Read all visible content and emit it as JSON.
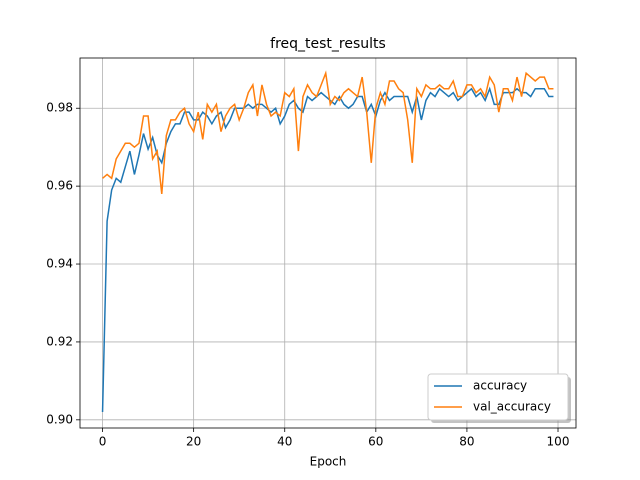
{
  "chart_data": {
    "type": "line",
    "title": "freq_test_results",
    "x_label": "Epoch",
    "x": [
      0,
      1,
      2,
      3,
      4,
      5,
      6,
      7,
      8,
      9,
      10,
      11,
      12,
      13,
      14,
      15,
      16,
      17,
      18,
      19,
      20,
      21,
      22,
      23,
      24,
      25,
      26,
      27,
      28,
      29,
      30,
      31,
      32,
      33,
      34,
      35,
      36,
      37,
      38,
      39,
      40,
      41,
      42,
      43,
      44,
      45,
      46,
      47,
      48,
      49,
      50,
      51,
      52,
      53,
      54,
      55,
      56,
      57,
      58,
      59,
      60,
      61,
      62,
      63,
      64,
      65,
      66,
      67,
      68,
      69,
      70,
      71,
      72,
      73,
      74,
      75,
      76,
      77,
      78,
      79,
      80,
      81,
      82,
      83,
      84,
      85,
      86,
      87,
      88,
      89,
      90,
      91,
      92,
      93,
      94,
      95,
      96,
      97,
      98,
      99
    ],
    "series": [
      {
        "name": "accuracy",
        "color": "#1f77b4",
        "values": [
          0.902,
          0.951,
          0.959,
          0.962,
          0.961,
          0.965,
          0.969,
          0.963,
          0.968,
          0.9735,
          0.9695,
          0.9725,
          0.968,
          0.966,
          0.971,
          0.974,
          0.976,
          0.976,
          0.979,
          0.979,
          0.977,
          0.977,
          0.979,
          0.978,
          0.976,
          0.978,
          0.979,
          0.975,
          0.977,
          0.98,
          0.98,
          0.98,
          0.981,
          0.98,
          0.981,
          0.981,
          0.98,
          0.979,
          0.98,
          0.976,
          0.978,
          0.981,
          0.982,
          0.98,
          0.979,
          0.983,
          0.982,
          0.983,
          0.984,
          0.983,
          0.982,
          0.981,
          0.983,
          0.981,
          0.98,
          0.981,
          0.983,
          0.983,
          0.979,
          0.981,
          0.978,
          0.982,
          0.984,
          0.982,
          0.983,
          0.983,
          0.983,
          0.983,
          0.979,
          0.983,
          0.977,
          0.982,
          0.984,
          0.983,
          0.985,
          0.984,
          0.983,
          0.984,
          0.982,
          0.983,
          0.984,
          0.985,
          0.983,
          0.984,
          0.982,
          0.985,
          0.981,
          0.981,
          0.984,
          0.984,
          0.984,
          0.985,
          0.984,
          0.984,
          0.983,
          0.985,
          0.985,
          0.985,
          0.983,
          0.983
        ]
      },
      {
        "name": "val_accuracy",
        "color": "#ff7f0e",
        "values": [
          0.962,
          0.963,
          0.962,
          0.967,
          0.969,
          0.971,
          0.971,
          0.97,
          0.971,
          0.978,
          0.978,
          0.967,
          0.969,
          0.958,
          0.973,
          0.977,
          0.977,
          0.979,
          0.98,
          0.976,
          0.974,
          0.979,
          0.972,
          0.981,
          0.979,
          0.981,
          0.974,
          0.978,
          0.98,
          0.981,
          0.977,
          0.98,
          0.984,
          0.986,
          0.978,
          0.986,
          0.981,
          0.978,
          0.979,
          0.978,
          0.984,
          0.983,
          0.985,
          0.969,
          0.983,
          0.986,
          0.984,
          0.983,
          0.986,
          0.989,
          0.981,
          0.983,
          0.982,
          0.984,
          0.985,
          0.984,
          0.983,
          0.988,
          0.979,
          0.966,
          0.98,
          0.984,
          0.981,
          0.987,
          0.987,
          0.985,
          0.984,
          0.977,
          0.966,
          0.985,
          0.983,
          0.986,
          0.985,
          0.985,
          0.986,
          0.985,
          0.985,
          0.987,
          0.983,
          0.983,
          0.986,
          0.986,
          0.984,
          0.985,
          0.983,
          0.988,
          0.986,
          0.979,
          0.985,
          0.985,
          0.982,
          0.988,
          0.983,
          0.989,
          0.988,
          0.987,
          0.988,
          0.988,
          0.985,
          0.985
        ]
      }
    ],
    "xlim": [
      -4.95,
      103.95
    ],
    "ylim": [
      0.8979,
      0.9929
    ],
    "xticks": [
      0,
      20,
      40,
      60,
      80,
      100
    ],
    "yticks": [
      {
        "value": 0.9,
        "label": "0.90"
      },
      0.92,
      0.94,
      0.96,
      0.98
    ],
    "grid": true,
    "legend": "lower right"
  }
}
